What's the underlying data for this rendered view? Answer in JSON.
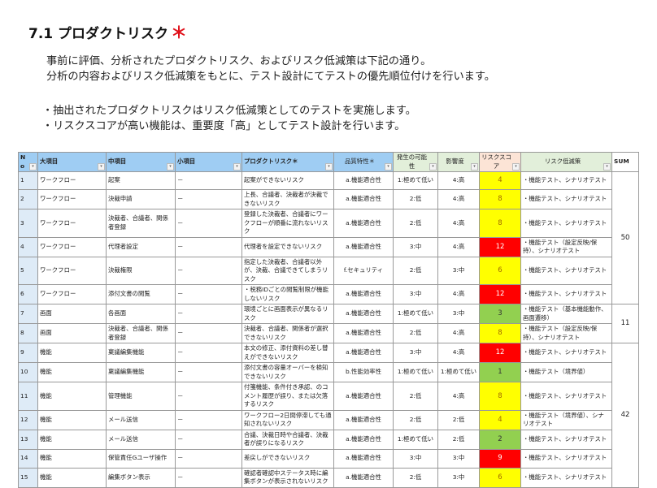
{
  "title": "7.1 プロダクトリスク",
  "title_mark": "＊",
  "paragraphs": [
    "事前に評価、分析されたプロダクトリスク、およびリスク低減策は下記の通り。",
    "分析の内容およびリスク低減策をもとに、テスト設計にてテストの優先順位付けを行います。",
    "・抽出されたプロダクトリスクはリスク低減策としてのテストを実施します。",
    "・リスクスコアが高い機能は、重要度「高」としてテスト設計を行います。"
  ],
  "colors": {
    "high": "#ff0000",
    "mid": "#ffff00",
    "low": "#92d050"
  },
  "table": {
    "headers": [
      "No",
      "大項目",
      "中項目",
      "小項目",
      "プロダクトリスク＊",
      "品質特性＊",
      "発生の可能性",
      "影響度",
      "リスクスコア",
      "リスク低減策",
      "SUM"
    ],
    "rows": [
      {
        "no": "1",
        "major": "ワークフロー",
        "mid": "起案",
        "minor": "－",
        "risk": "起案ができないリスク",
        "quality": "a.機能適合性",
        "likelihood": "1:極めて低い",
        "impact": "4:高",
        "score": "4",
        "level": "mid",
        "mitigation": "・機能テスト、シナリオテスト"
      },
      {
        "no": "2",
        "major": "ワークフロー",
        "mid": "決裁申請",
        "minor": "－",
        "risk": "上長、合議者、決裁者が決裁できないリスク",
        "quality": "a.機能適合性",
        "likelihood": "2:低",
        "impact": "4:高",
        "score": "8",
        "level": "mid",
        "mitigation": "・機能テスト、シナリオテスト"
      },
      {
        "no": "3",
        "major": "ワークフロー",
        "mid": "決裁者、合議者、関係者登録",
        "minor": "－",
        "risk": "登録した決裁者、合議者にワークフローが順番に流れないリスク",
        "quality": "a.機能適合性",
        "likelihood": "2:低",
        "impact": "4:高",
        "score": "8",
        "level": "mid",
        "mitigation": "・機能テスト、シナリオテスト"
      },
      {
        "no": "4",
        "major": "ワークフロー",
        "mid": "代理者設定",
        "minor": "－",
        "risk": "代理者を設定できないリスク",
        "quality": "a.機能適合性",
        "likelihood": "3:中",
        "impact": "4:高",
        "score": "12",
        "level": "high",
        "mitigation": "・機能テスト（設定反映/保持）、シナリオテスト"
      },
      {
        "no": "5",
        "major": "ワークフロー",
        "mid": "決裁権限",
        "minor": "－",
        "risk": "指定した決裁者、合議者以外が、決裁、合議できてしまうリスク",
        "quality": "f.セキュリティ",
        "likelihood": "2:低",
        "impact": "3:中",
        "score": "6",
        "level": "mid",
        "mitigation": "・機能テスト、シナリオテスト"
      },
      {
        "no": "6",
        "major": "ワークフロー",
        "mid": "添付文書の閲覧",
        "minor": "－",
        "risk": "・税務IDごとの閲覧制限が機能しないリスク",
        "quality": "a.機能適合性",
        "likelihood": "3:中",
        "impact": "4:高",
        "score": "12",
        "level": "high",
        "mitigation": "・機能テスト、シナリオテスト"
      },
      {
        "no": "7",
        "major": "画面",
        "mid": "各画面",
        "minor": "－",
        "risk": "環境ごとに画面表示が異なるリスク",
        "quality": "a.機能適合性",
        "likelihood": "1:極めて低い",
        "impact": "3:中",
        "score": "3",
        "level": "low",
        "mitigation": "・機能テスト（基本機能動作、画面遷移）"
      },
      {
        "no": "8",
        "major": "画面",
        "mid": "決裁者、合議者、関係者登録",
        "minor": "－",
        "risk": "決裁者、合議者、関係者が選択できないリスク",
        "quality": "a.機能適合性",
        "likelihood": "2:低",
        "impact": "4:高",
        "score": "8",
        "level": "mid",
        "mitigation": "・機能テスト（設定反映/保持）、シナリオテスト"
      },
      {
        "no": "9",
        "major": "機能",
        "mid": "稟議編集機能",
        "minor": "－",
        "risk": "本文の修正、添付資料の差し替えができないリスク",
        "quality": "a.機能適合性",
        "likelihood": "3:中",
        "impact": "4:高",
        "score": "12",
        "level": "high",
        "mitigation": "・機能テスト、シナリオテスト"
      },
      {
        "no": "10",
        "major": "機能",
        "mid": "稟議編集機能",
        "minor": "－",
        "risk": "添付文書の容量オーバーを検知できないリスク",
        "quality": "b.性能効率性",
        "likelihood": "1:極めて低い",
        "impact": "1:極めて低い",
        "score": "1",
        "level": "low",
        "mitigation": "・機能テスト（境界値）"
      },
      {
        "no": "11",
        "major": "機能",
        "mid": "管理機能",
        "minor": "－",
        "risk": "付箋機能、条件付き承認、のコメント履歴が誤り、または欠落するリスク",
        "quality": "a.機能適合性",
        "likelihood": "2:低",
        "impact": "4:高",
        "score": "8",
        "level": "mid",
        "mitigation": "・機能テスト、シナリオテスト"
      },
      {
        "no": "12",
        "major": "機能",
        "mid": "メール送信",
        "minor": "－",
        "risk": "ワークフロー2日間停滞しても通知されないリスク",
        "quality": "a.機能適合性",
        "likelihood": "2:低",
        "impact": "2:低",
        "score": "4",
        "level": "mid",
        "mitigation": "・機能テスト（境界値）、シナリオテスト"
      },
      {
        "no": "13",
        "major": "機能",
        "mid": "メール送信",
        "minor": "－",
        "risk": "合議、決裁日時や合議者、決裁者が誤りになるリスク",
        "quality": "a.機能適合性",
        "likelihood": "1:極めて低い",
        "impact": "2:低",
        "score": "2",
        "level": "low",
        "mitigation": "・機能テスト、シナリオテスト"
      },
      {
        "no": "14",
        "major": "機能",
        "mid": "保管責任Gユーザ操作",
        "minor": "－",
        "risk": "差戻しができないリスク",
        "quality": "a.機能適合性",
        "likelihood": "3:中",
        "impact": "3:中",
        "score": "9",
        "level": "high",
        "mitigation": "・機能テスト、シナリオテスト"
      },
      {
        "no": "15",
        "major": "機能",
        "mid": "編集ボタン表示",
        "minor": "－",
        "risk": "確認者確認中ステータス時に編集ボタンが表示されないリスク",
        "quality": "a.機能適合性",
        "likelihood": "2:低",
        "impact": "3:中",
        "score": "6",
        "level": "mid",
        "mitigation": "・機能テスト、シナリオテスト"
      }
    ],
    "sums": [
      {
        "value": "50",
        "span": 6
      },
      {
        "value": "11",
        "span": 2
      },
      {
        "value": "42",
        "span": 7
      }
    ]
  }
}
